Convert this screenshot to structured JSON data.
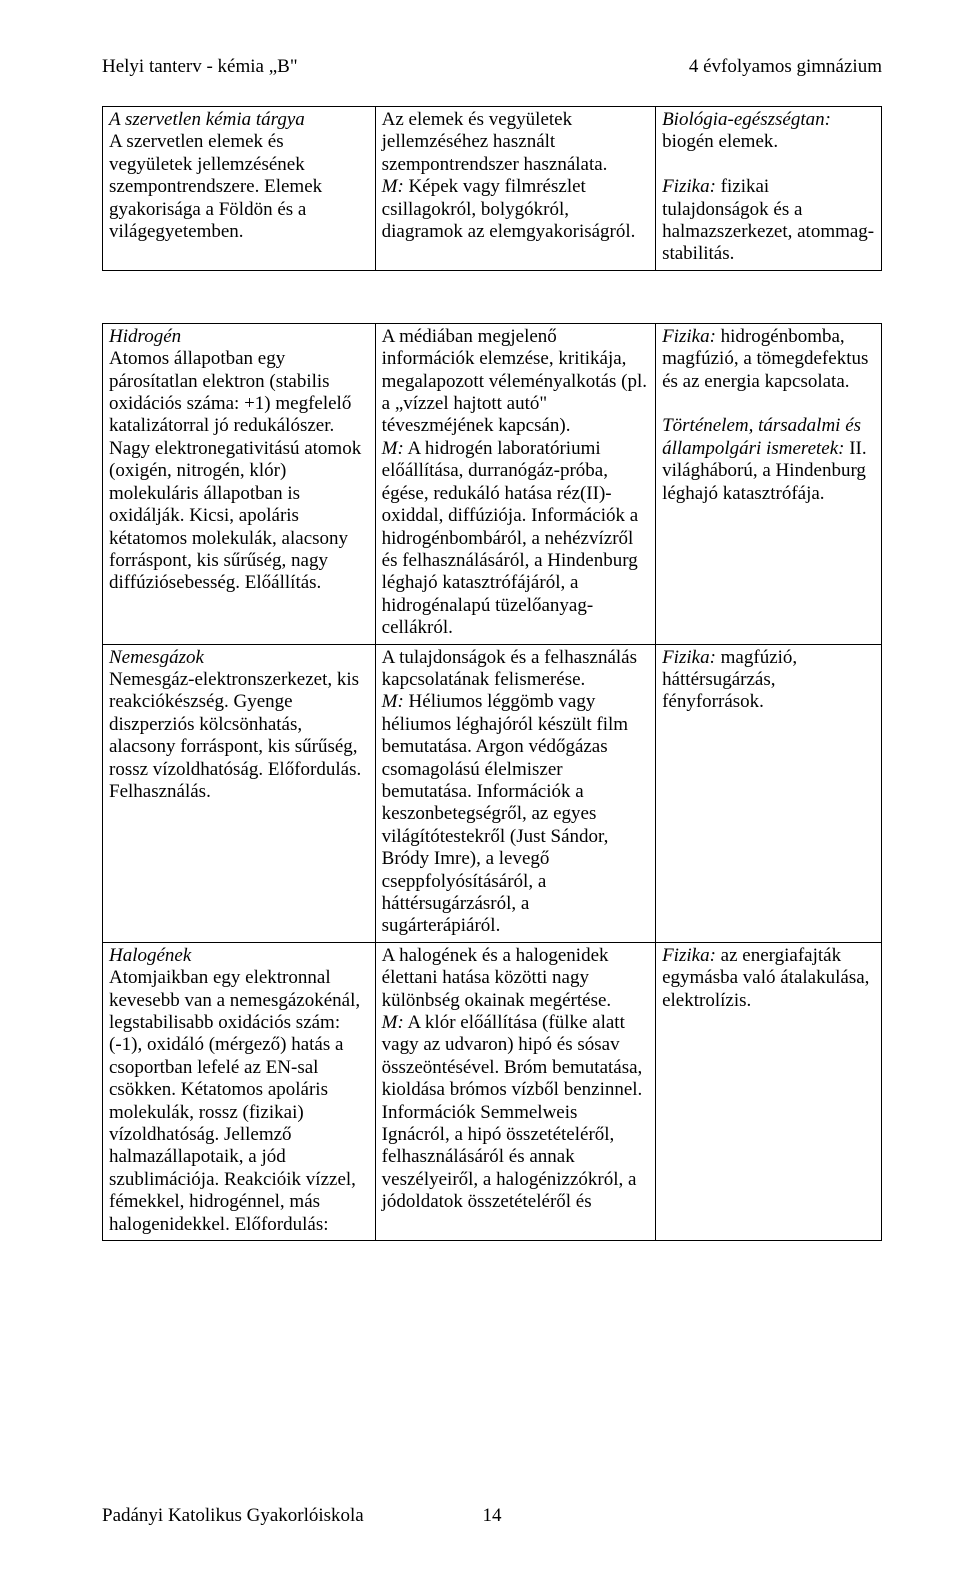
{
  "header": {
    "left": "Helyi tanterv - kémia „B\"",
    "right": "4 évfolyamos gimnázium"
  },
  "table1": {
    "r0c0_title": "A szervetlen kémia tárgya",
    "r0c0_body": "A szervetlen elemek és vegyületek jellemzésének szempontrendszere. Elemek gyakorisága a Földön és a világegyetemben.",
    "r0c1_p1": "Az elemek és vegyületek jellemzéséhez használt szempontrendszer használata.",
    "r0c1_p2a": "M:",
    "r0c1_p2b": " Képek vagy filmrészlet csillagokról, bolygókról, diagramok az elemgyakoriságról.",
    "r0c2_p1a": "Biológia-egészségtan:",
    "r0c2_p1b": " biogén elemek.",
    "r0c2_p2a": "Fizika:",
    "r0c2_p2b": " fizikai tulajdonságok és a halmazszerkezet, atommag-stabilitás."
  },
  "table2": {
    "r0c0_title": "Hidrogén",
    "r0c0_body": "Atomos állapotban egy párosítatlan elektron (stabilis oxidációs száma: +1) megfelelő katalizátorral jó redukálószer. Nagy elektronegativitású atomok (oxigén, nitrogén, klór) molekuláris állapotban is oxidálják. Kicsi, apoláris kétatomos molekulák, alacsony forráspont, kis sűrűség, nagy diffúziósebesség. Előállítás.",
    "r0c1_p1": "A médiában megjelenő információk elemzése, kritikája, megalapozott véleményalkotás (pl. a „vízzel hajtott autó\" téveszméjének kapcsán).",
    "r0c1_p2a": "M:",
    "r0c1_p2b": " A hidrogén laboratóriumi előállítása, durranógáz-próba, égése, redukáló hatása réz(II)-oxiddal, diffúziója. Információk a hidrogénbombáról, a nehézvízről és felhasználásáról, a Hindenburg léghajó katasztrófájáról, a hidrogénalapú tüzelőanyag-cellákról.",
    "r0c2_p1a": "Fizika:",
    "r0c2_p1b": " hidrogénbomba, magfúzió, a tömegdefektus és az energia kapcsolata.",
    "r0c2_p2a": "Történelem, társadalmi és állampolgári ismeretek:",
    "r0c2_p2b": " II. világháború, a Hindenburg léghajó katasztrófája.",
    "r1c0_title": "Nemesgázok",
    "r1c0_body": "Nemesgáz-elektronszerkezet, kis reakciókészség. Gyenge diszperziós kölcsönhatás, alacsony forráspont, kis sűrűség, rossz vízoldhatóság. Előfordulás. Felhasználás.",
    "r1c1_p1": "A tulajdonságok és a felhasználás kapcsolatának felismerése.",
    "r1c1_p2a": "M:",
    "r1c1_p2b": " Héliumos léggömb vagy héliumos léghajóról készült film bemutatása. Argon védőgázas csomagolású élelmiszer bemutatása. Információk a keszonbetegségről, az egyes világítótestekről (Just Sándor, Bródy Imre), a levegő cseppfolyósításáról, a háttérsugárzásról, a sugárterápiáról.",
    "r1c2_p1a": "Fizika:",
    "r1c2_p1b": " magfúzió, háttérsugárzás, fényforrások.",
    "r2c0_title": "Halogének",
    "r2c0_body": "Atomjaikban egy elektronnal kevesebb van a nemesgázokénál, legstabilisabb oxidációs szám: (-1), oxidáló (mérgező) hatás a csoportban lefelé az EN-sal csökken. Kétatomos apoláris molekulák, rossz (fizikai) vízoldhatóság. Jellemző halmazállapotaik, a jód szublimációja. Reakcióik vízzel, fémekkel, hidrogénnel, más halogenidekkel. Előfordulás:",
    "r2c1_p1": "A halogének és a halogenidek élettani hatása közötti nagy különbség okainak megértése.",
    "r2c1_p2a": "M:",
    "r2c1_p2b": " A klór előállítása (fülke alatt vagy az udvaron) hipó és sósav összeöntésével. Bróm bemutatása, kioldása brómos vízből benzinnel. Információk Semmelweis Ignácról, a hipó összetételéről, felhasználásáról és annak veszélyeiről, a halogénizzókról, a jódoldatok összetételéről és",
    "r2c2_p1a": "Fizika:",
    "r2c2_p1b": " az energiafajták egymásba való átalakulása, elektrolízis."
  },
  "footer": {
    "left": "Padányi Katolikus Gyakorlóiskola",
    "page": "14"
  }
}
